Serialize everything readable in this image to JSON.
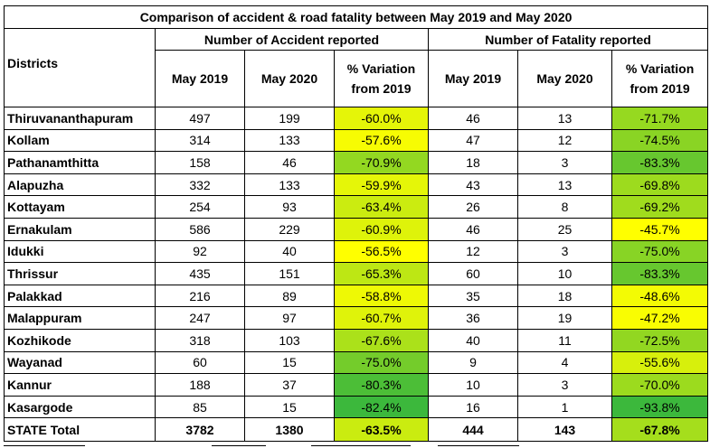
{
  "title": "Comparison of accident & road fatality between May 2019 and May 2020",
  "headers": {
    "districts": "Districts",
    "accident_group": "Number of Accident reported",
    "fatality_group": "Number of Fatality reported",
    "may2019": "May 2019",
    "may2020": "May 2020",
    "variation_line1": "% Variation",
    "variation_line2": "from 2019"
  },
  "rows": [
    {
      "district": "Thiruvananthapuram",
      "acc2019": "497",
      "acc2020": "199",
      "accVar": "-60.0%",
      "fat2019": "46",
      "fat2020": "13",
      "fatVar": "-71.7%"
    },
    {
      "district": "Kollam",
      "acc2019": "314",
      "acc2020": "133",
      "accVar": "-57.6%",
      "fat2019": "47",
      "fat2020": "12",
      "fatVar": "-74.5%"
    },
    {
      "district": "Pathanamthitta",
      "acc2019": "158",
      "acc2020": "46",
      "accVar": "-70.9%",
      "fat2019": "18",
      "fat2020": "3",
      "fatVar": "-83.3%"
    },
    {
      "district": "Alapuzha",
      "acc2019": "332",
      "acc2020": "133",
      "accVar": "-59.9%",
      "fat2019": "43",
      "fat2020": "13",
      "fatVar": "-69.8%"
    },
    {
      "district": "Kottayam",
      "acc2019": "254",
      "acc2020": "93",
      "accVar": "-63.4%",
      "fat2019": "26",
      "fat2020": "8",
      "fatVar": "-69.2%"
    },
    {
      "district": "Ernakulam",
      "acc2019": "586",
      "acc2020": "229",
      "accVar": "-60.9%",
      "fat2019": "46",
      "fat2020": "25",
      "fatVar": "-45.7%"
    },
    {
      "district": "Idukki",
      "acc2019": "92",
      "acc2020": "40",
      "accVar": "-56.5%",
      "fat2019": "12",
      "fat2020": "3",
      "fatVar": "-75.0%"
    },
    {
      "district": "Thrissur",
      "acc2019": "435",
      "acc2020": "151",
      "accVar": "-65.3%",
      "fat2019": "60",
      "fat2020": "10",
      "fatVar": "-83.3%"
    },
    {
      "district": "Palakkad",
      "acc2019": "216",
      "acc2020": "89",
      "accVar": "-58.8%",
      "fat2019": "35",
      "fat2020": "18",
      "fatVar": "-48.6%"
    },
    {
      "district": "Malappuram",
      "acc2019": "247",
      "acc2020": "97",
      "accVar": "-60.7%",
      "fat2019": "36",
      "fat2020": "19",
      "fatVar": "-47.2%"
    },
    {
      "district": "Kozhikode",
      "acc2019": "318",
      "acc2020": "103",
      "accVar": "-67.6%",
      "fat2019": "40",
      "fat2020": "11",
      "fatVar": "-72.5%"
    },
    {
      "district": "Wayanad",
      "acc2019": "60",
      "acc2020": "15",
      "accVar": "-75.0%",
      "fat2019": "9",
      "fat2020": "4",
      "fatVar": "-55.6%"
    },
    {
      "district": "Kannur",
      "acc2019": "188",
      "acc2020": "37",
      "accVar": "-80.3%",
      "fat2019": "10",
      "fat2020": "3",
      "fatVar": "-70.0%"
    },
    {
      "district": "Kasargode",
      "acc2019": "85",
      "acc2020": "15",
      "accVar": "-82.4%",
      "fat2019": "16",
      "fat2020": "1",
      "fatVar": "-93.8%"
    }
  ],
  "total": {
    "district": "STATE Total",
    "acc2019": "3782",
    "acc2020": "1380",
    "accVar": "-63.5%",
    "fat2019": "444",
    "fat2020": "143",
    "fatVar": "-67.8%"
  },
  "colors": {
    "scale_yellow": "#ffff00",
    "scale_green": "#3cb83c",
    "border": "#000000"
  }
}
